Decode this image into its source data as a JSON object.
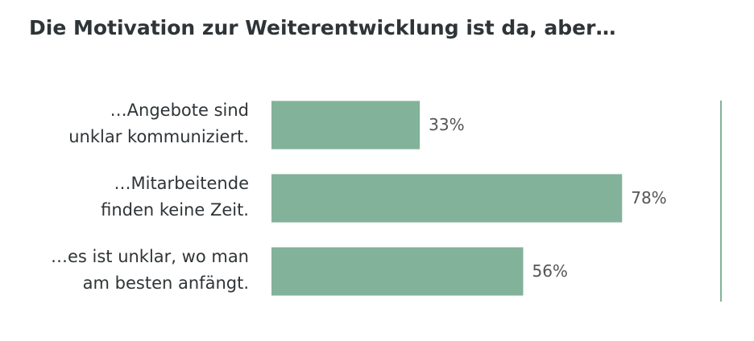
{
  "chart_data": {
    "type": "bar",
    "orientation": "horizontal",
    "title": "Die Motivation zur Weiterentwicklung ist da, aber…",
    "categories": [
      "…Angebote sind\nunklar kommuniziert.",
      "…Mitarbeitende\nfinden keine Zeit.",
      "…es ist unklar, wo man\nam besten anfängt."
    ],
    "values": [
      33,
      78,
      56
    ],
    "value_labels": [
      "33%",
      "78%",
      "56%"
    ],
    "color": "#82b29a",
    "xlim": [
      0,
      100
    ]
  }
}
